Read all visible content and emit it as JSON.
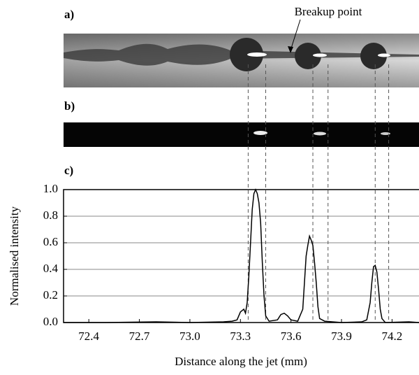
{
  "chart_data": {
    "type": "line",
    "panel_labels": [
      "a)",
      "b)",
      "c)"
    ],
    "annotation": "Breakup point",
    "ylabel": "Normalised intensity",
    "xlabel": "Distance along the jet (mm)",
    "xlim": [
      72.25,
      74.36
    ],
    "ylim": [
      0,
      1
    ],
    "xticks": [
      72.4,
      72.7,
      {
        "value": 73,
        "label": "73.0"
      },
      73.3,
      73.6,
      73.9,
      74.2
    ],
    "yticks": [
      {
        "value": 0,
        "label": "0.0"
      },
      {
        "value": 0.2,
        "label": "0.2"
      },
      {
        "value": 0.4,
        "label": "0.4"
      },
      {
        "value": 0.6,
        "label": "0.6"
      },
      {
        "value": 0.8,
        "label": "0.8"
      },
      {
        "value": 1,
        "label": "1.0"
      }
    ],
    "grid": true,
    "dashed_lines": [
      73.346,
      73.45,
      73.73,
      73.82,
      74.1,
      74.18
    ],
    "series": [
      {
        "color": "#000000",
        "x": [
          72.25,
          72.5,
          72.8,
          73.0,
          73.2,
          73.25,
          73.28,
          73.3,
          73.32,
          73.33,
          73.34,
          73.35,
          73.36,
          73.37,
          73.38,
          73.39,
          73.4,
          73.41,
          73.42,
          73.43,
          73.44,
          73.45,
          73.47,
          73.52,
          73.54,
          73.56,
          73.58,
          73.6,
          73.64,
          73.67,
          73.68,
          73.69,
          73.7,
          73.71,
          73.72,
          73.73,
          73.74,
          73.75,
          73.76,
          73.77,
          73.8,
          73.9,
          74.02,
          74.05,
          74.07,
          74.08,
          74.09,
          74.1,
          74.11,
          74.12,
          74.13,
          74.14,
          74.16,
          74.3,
          74.36
        ],
        "values": [
          0,
          0,
          0.005,
          0,
          0.005,
          0.01,
          0.02,
          0.08,
          0.1,
          0.07,
          0.15,
          0.35,
          0.6,
          0.85,
          0.97,
          1.0,
          0.97,
          0.9,
          0.75,
          0.45,
          0.2,
          0.05,
          0.01,
          0.02,
          0.06,
          0.07,
          0.05,
          0.02,
          0.01,
          0.1,
          0.3,
          0.5,
          0.58,
          0.65,
          0.62,
          0.58,
          0.45,
          0.3,
          0.12,
          0.03,
          0.01,
          0,
          0.005,
          0.02,
          0.15,
          0.3,
          0.42,
          0.43,
          0.38,
          0.25,
          0.1,
          0.03,
          0,
          0.005,
          0
        ]
      }
    ]
  }
}
